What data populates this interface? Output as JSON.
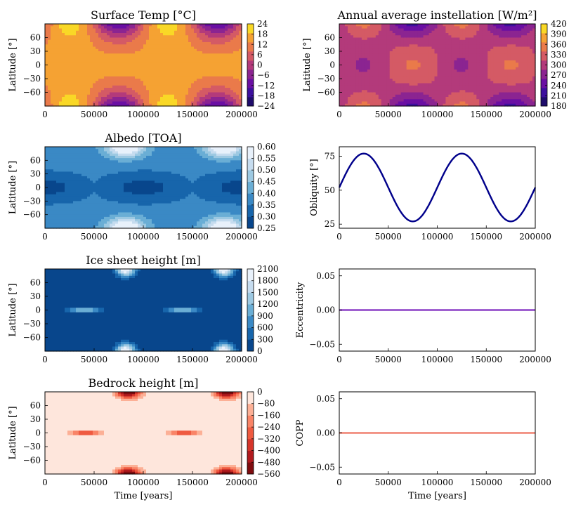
{
  "figure": {
    "xlabel": "Time [years]"
  },
  "chart_data": [
    {
      "type": "heatmap",
      "title": "Surface Temp [°C]",
      "ylabel": "Latitude [°]",
      "field": "temp",
      "xlim": [
        0,
        200000
      ],
      "ylim": [
        -90,
        90
      ],
      "xticks": [
        "0",
        "50000",
        "100000",
        "150000",
        "200000"
      ],
      "yticks": [
        "60",
        "30",
        "0",
        "−30",
        "−60"
      ],
      "colorbar": {
        "ticks": [
          "24",
          "18",
          "12",
          "6",
          "0",
          "−6",
          "−12",
          "−18",
          "−24"
        ],
        "levels": [
          -24,
          -18,
          -12,
          -6,
          0,
          6,
          12,
          18,
          24
        ],
        "colors": [
          "#1f0c6b",
          "#3d0f9e",
          "#6a0fa3",
          "#8b2491",
          "#b33a7b",
          "#d45a65",
          "#ea7a4a",
          "#f5a233",
          "#f9d826"
        ]
      }
    },
    {
      "type": "heatmap",
      "title": "Annual average instellation [W/m²]",
      "ylabel": "Latitude [°]",
      "field": "insol",
      "xlim": [
        0,
        200000
      ],
      "ylim": [
        -90,
        90
      ],
      "xticks": [
        "0",
        "50000",
        "100000",
        "150000",
        "200000"
      ],
      "yticks": [
        "60",
        "30",
        "0",
        "−30",
        "−60"
      ],
      "colorbar": {
        "ticks": [
          "420",
          "390",
          "360",
          "330",
          "300",
          "270",
          "240",
          "210",
          "180"
        ],
        "levels": [
          180,
          210,
          240,
          270,
          300,
          330,
          360,
          390,
          420
        ],
        "colors": [
          "#1f0c6b",
          "#3d0f9e",
          "#6a0fa3",
          "#8b2491",
          "#b33a7b",
          "#d45a65",
          "#ea7a4a",
          "#f5a233",
          "#f9d826"
        ]
      }
    },
    {
      "type": "heatmap",
      "title": "Albedo [TOA]",
      "ylabel": "Latitude [°]",
      "field": "albedo",
      "xlim": [
        0,
        200000
      ],
      "ylim": [
        -90,
        90
      ],
      "xticks": [
        "0",
        "50000",
        "100000",
        "150000",
        "200000"
      ],
      "yticks": [
        "60",
        "30",
        "0",
        "−30",
        "−60"
      ],
      "colorbar": {
        "ticks": [
          "0.60",
          "0.55",
          "0.50",
          "0.45",
          "0.40",
          "0.35",
          "0.30",
          "0.25"
        ],
        "levels": [
          0.25,
          0.3,
          0.35,
          0.4,
          0.45,
          0.5,
          0.55,
          0.6
        ],
        "colors": [
          "#08468c",
          "#1765ab",
          "#3a89c5",
          "#6aaed5",
          "#9dc9e2",
          "#c6dcef",
          "#e8f1fb"
        ]
      }
    },
    {
      "type": "line",
      "title": "",
      "ylabel": "Obliquity [°]",
      "xlim": [
        0,
        200000
      ],
      "ylim": [
        22,
        82
      ],
      "xticks": [
        "0",
        "50000",
        "100000",
        "150000",
        "200000"
      ],
      "yticks": [
        "75",
        "50",
        "25"
      ],
      "ytick_values": [
        75,
        50,
        25
      ],
      "color": "#00008b",
      "model": {
        "mean": 52,
        "amplitude": 25,
        "period": 100000,
        "phase_years": 0
      },
      "series": [
        {
          "x": [
            0,
            25000,
            50000,
            75000,
            100000,
            125000,
            150000,
            175000,
            200000
          ],
          "values": [
            52,
            77,
            52,
            27,
            52,
            77,
            52,
            27,
            52
          ]
        }
      ]
    },
    {
      "type": "heatmap",
      "title": "Ice sheet height [m]",
      "ylabel": "Latitude [°]",
      "field": "ice",
      "xlim": [
        0,
        200000
      ],
      "ylim": [
        -90,
        90
      ],
      "xticks": [
        "0",
        "50000",
        "100000",
        "150000",
        "200000"
      ],
      "yticks": [
        "60",
        "30",
        "0",
        "−30",
        "−60"
      ],
      "colorbar": {
        "ticks": [
          "2100",
          "1800",
          "1500",
          "1200",
          "900",
          "600",
          "300",
          "0"
        ],
        "levels": [
          0,
          300,
          600,
          900,
          1200,
          1500,
          1800,
          2100
        ],
        "colors": [
          "#08468c",
          "#1765ab",
          "#3a89c5",
          "#6aaed5",
          "#9dc9e2",
          "#c6dcef",
          "#e8f1fb"
        ]
      }
    },
    {
      "type": "line",
      "title": "",
      "ylabel": "Eccentricity",
      "xlim": [
        0,
        200000
      ],
      "ylim": [
        -0.06,
        0.06
      ],
      "xticks": [
        "0",
        "50000",
        "100000",
        "150000",
        "200000"
      ],
      "yticks": [
        "0.05",
        "0.00",
        "−0.05"
      ],
      "ytick_values": [
        0.05,
        0.0,
        -0.05
      ],
      "color": "#8b3fc6",
      "series": [
        {
          "x": [
            0,
            200000
          ],
          "values": [
            0,
            0
          ]
        }
      ]
    },
    {
      "type": "heatmap",
      "title": "Bedrock height [m]",
      "ylabel": "Latitude [°]",
      "field": "bedrock",
      "xlim": [
        0,
        200000
      ],
      "ylim": [
        -90,
        90
      ],
      "xticks": [
        "0",
        "50000",
        "100000",
        "150000",
        "200000"
      ],
      "yticks": [
        "60",
        "30",
        "0",
        "−30",
        "−60"
      ],
      "colorbar": {
        "ticks": [
          "0",
          "−80",
          "−160",
          "−240",
          "−320",
          "−400",
          "−480",
          "−560"
        ],
        "levels": [
          -560,
          -480,
          -400,
          -320,
          -240,
          -160,
          -80,
          0
        ],
        "colors": [
          "#7f0c0f",
          "#b11a1e",
          "#d6352a",
          "#ef5a40",
          "#f98467",
          "#fcb096",
          "#fee6dc"
        ]
      }
    },
    {
      "type": "line",
      "title": "",
      "ylabel": "COPP",
      "xlim": [
        0,
        200000
      ],
      "ylim": [
        -0.06,
        0.06
      ],
      "xticks": [
        "0",
        "50000",
        "100000",
        "150000",
        "200000"
      ],
      "yticks": [
        "0.05",
        "0.00",
        "−0.05"
      ],
      "ytick_values": [
        0.05,
        0.0,
        -0.05
      ],
      "color": "#f08070",
      "series": [
        {
          "x": [
            0,
            200000
          ],
          "values": [
            0,
            0
          ]
        }
      ]
    }
  ]
}
